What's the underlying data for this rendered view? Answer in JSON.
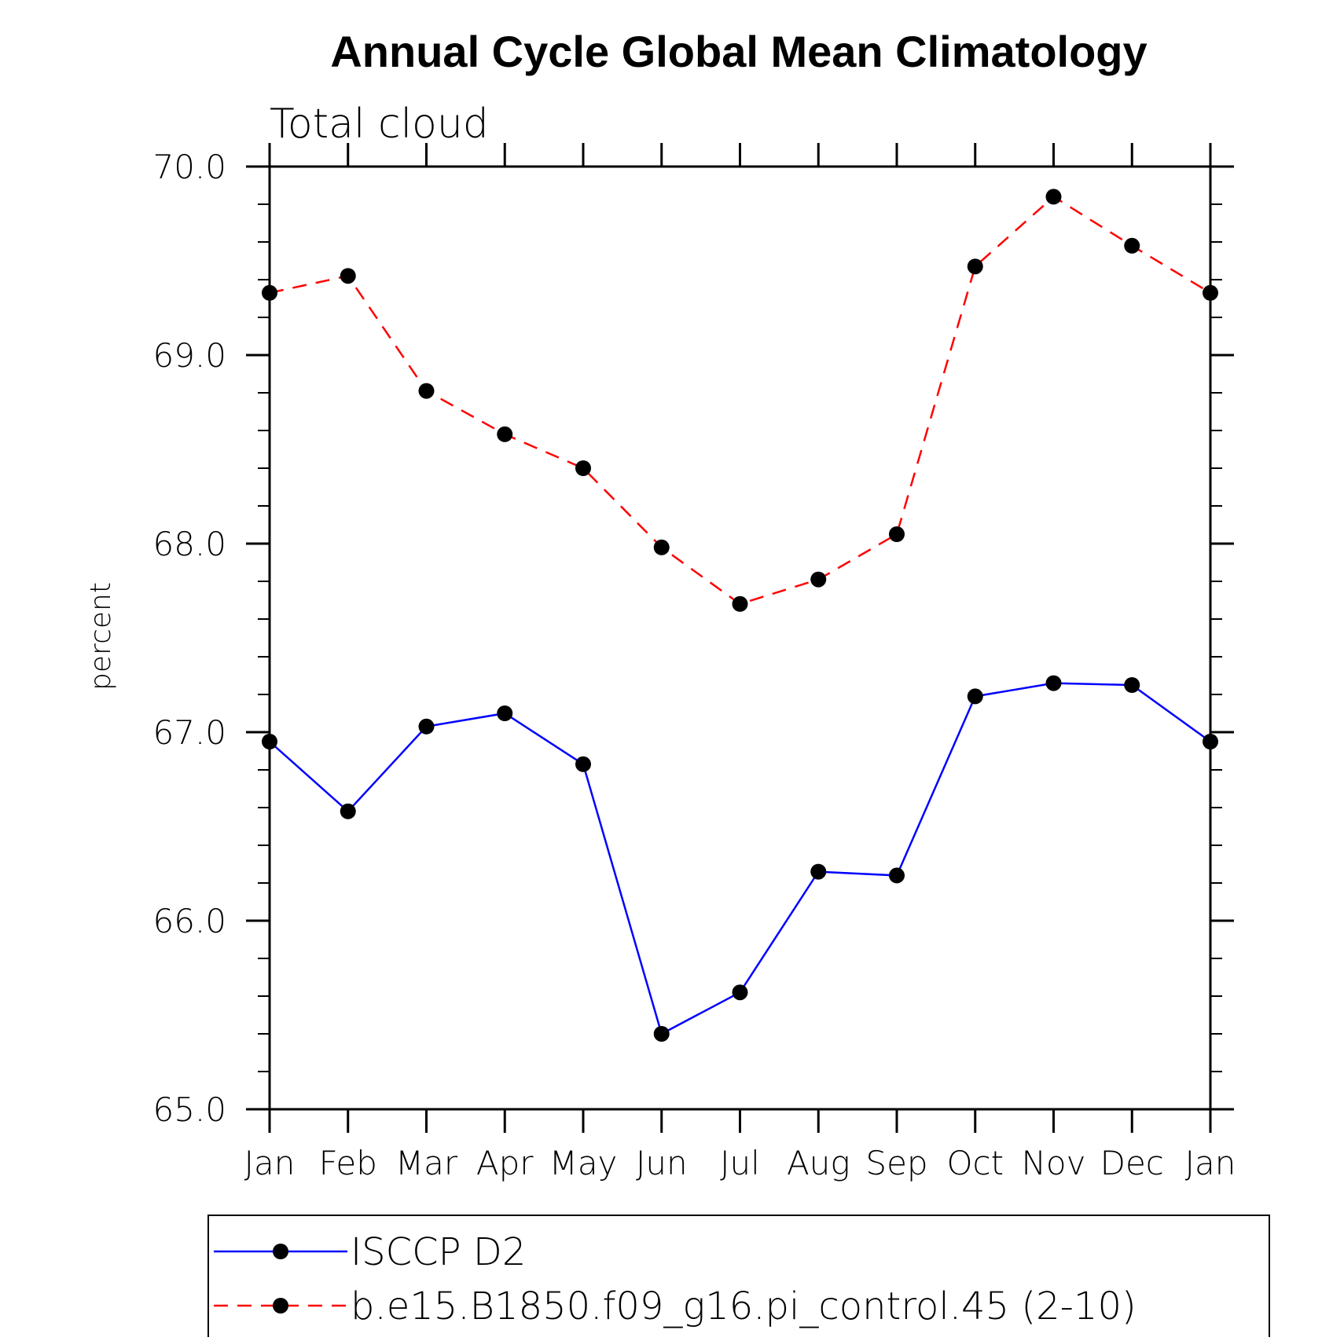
{
  "chart_data": {
    "type": "line",
    "title": "Annual Cycle Global Mean Climatology",
    "subtitle": "Total cloud",
    "xlabel": "",
    "ylabel": "percent",
    "categories": [
      "Jan",
      "Feb",
      "Mar",
      "Apr",
      "May",
      "Jun",
      "Jul",
      "Aug",
      "Sep",
      "Oct",
      "Nov",
      "Dec",
      "Jan"
    ],
    "ylim": [
      65.0,
      70.0
    ],
    "yticks": [
      65.0,
      66.0,
      67.0,
      68.0,
      69.0,
      70.0
    ],
    "ytick_labels": [
      "65.0",
      "66.0",
      "67.0",
      "68.0",
      "69.0",
      "70.0"
    ],
    "y_minor_step": 0.2,
    "grid": false,
    "legend_position": "bottom",
    "series": [
      {
        "name": "ISCCP D2",
        "color": "#0000ff",
        "line_style": "solid",
        "marker": "filled-circle",
        "marker_color": "#000000",
        "values": [
          66.95,
          66.58,
          67.03,
          67.1,
          66.83,
          65.4,
          65.62,
          66.26,
          66.24,
          67.19,
          67.26,
          67.25,
          66.95
        ]
      },
      {
        "name": "b.e15.B1850.f09_g16.pi_control.45 (2-10)",
        "color": "#ff0000",
        "line_style": "dashed",
        "marker": "filled-circle",
        "marker_color": "#000000",
        "values": [
          69.33,
          69.42,
          68.81,
          68.58,
          68.4,
          67.98,
          67.68,
          67.81,
          68.05,
          69.47,
          69.84,
          69.58,
          69.33
        ]
      }
    ]
  }
}
